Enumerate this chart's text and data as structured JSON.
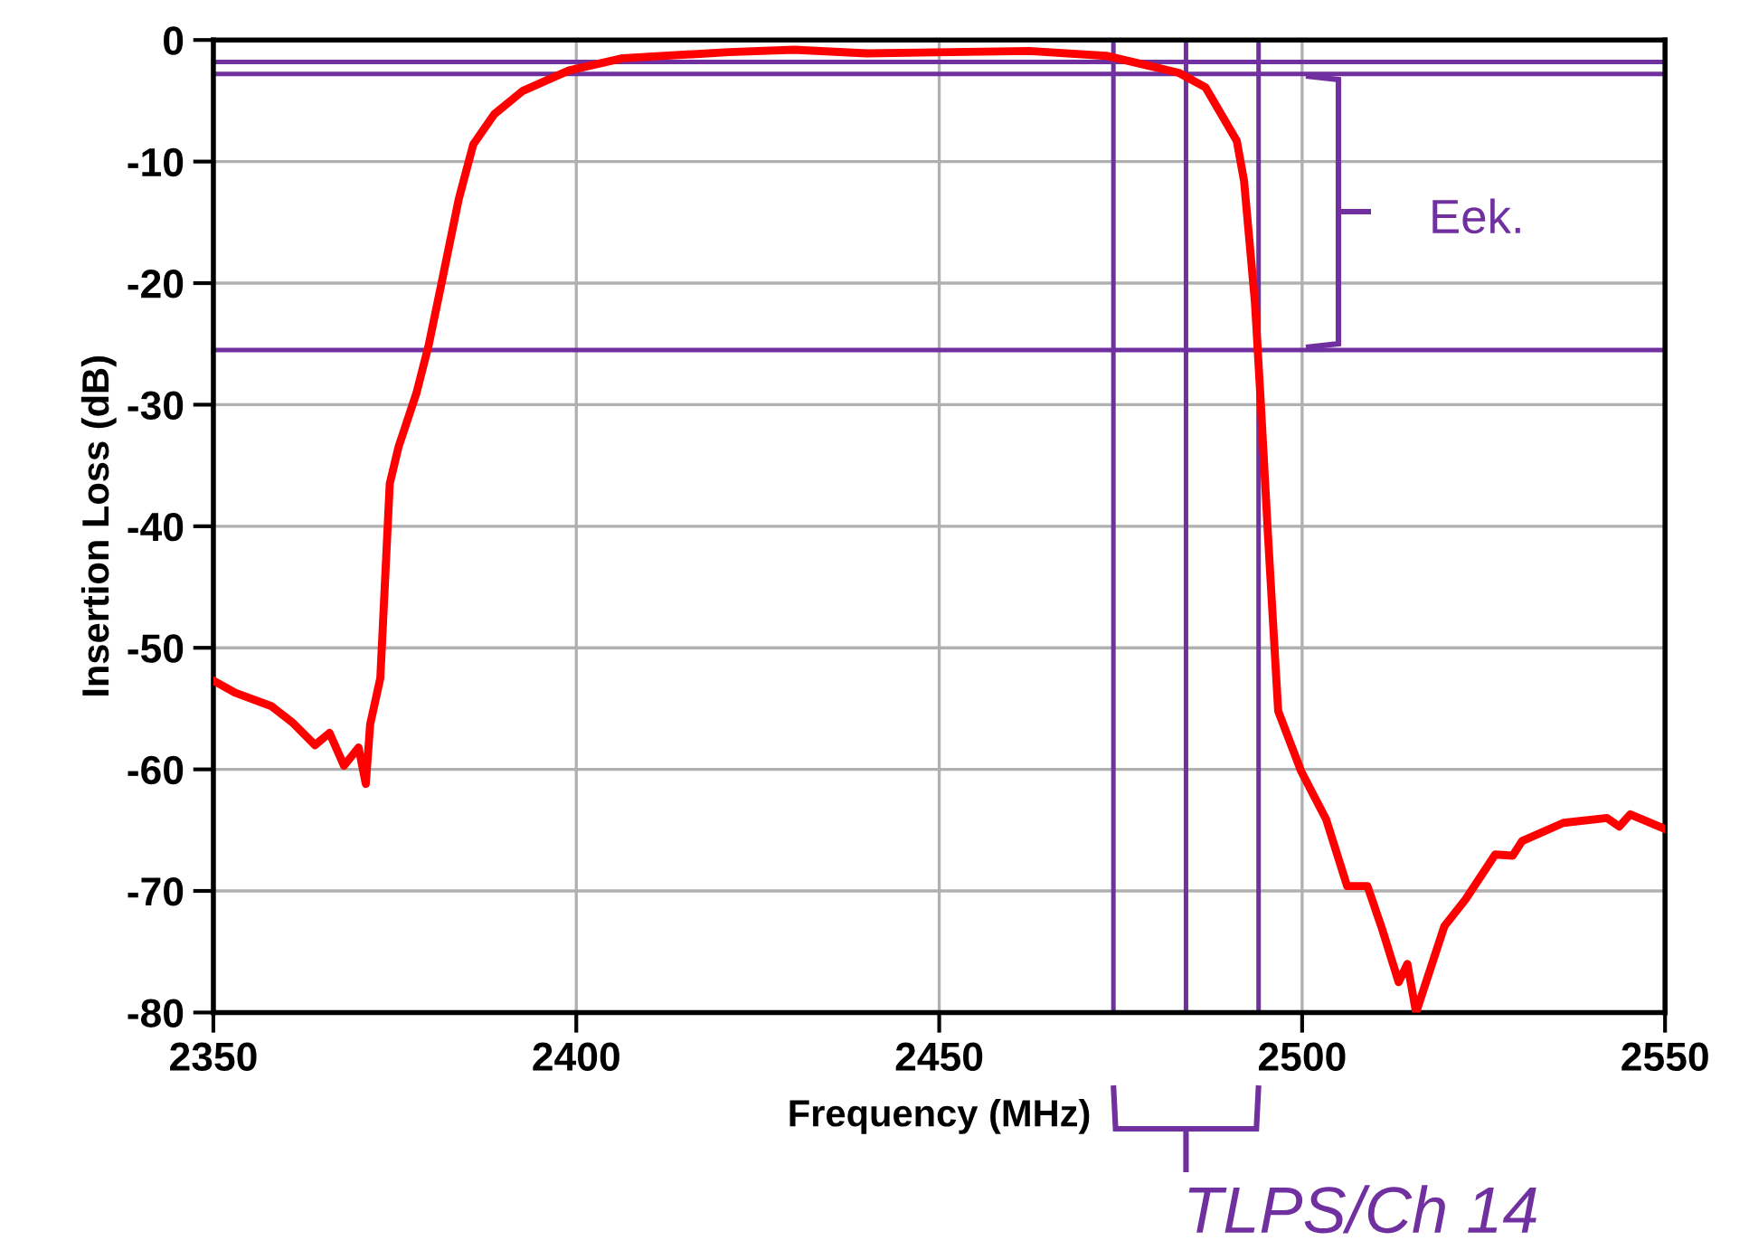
{
  "chart_data": {
    "type": "line",
    "xlabel": "Frequency (MHz)",
    "ylabel": "Insertion Loss (dB)",
    "xlim": [
      2350,
      2550
    ],
    "xticks": [
      2350,
      2400,
      2450,
      2500,
      2550
    ],
    "ylim": [
      -80,
      0
    ],
    "yticks": [
      -80,
      -70,
      -60,
      -50,
      -40,
      -30,
      -20,
      -10,
      0
    ],
    "grid": true,
    "marker": "none",
    "line_style": "solid",
    "series": [
      {
        "color": "#ff0000",
        "x": [
          2350,
          2353,
          2358,
          2361,
          2364,
          2366,
          2368,
          2370,
          2371,
          2371.6,
          2373,
          2374.3,
          2375.5,
          2378,
          2379.7,
          2381.4,
          2383.8,
          2385.8,
          2388.7,
          2392.6,
          2399,
          2406.4,
          2421,
          2430,
          2440,
          2462.4,
          2473,
          2483,
          2486.7,
          2491,
          2492,
          2493.5,
          2494.3,
          2495.3,
          2496.7,
          2499.9,
          2503.3,
          2506.2,
          2509,
          2511,
          2513.3,
          2514.5,
          2515.7,
          2519.6,
          2522.5,
          2526.6,
          2529,
          2530.3,
          2536,
          2542,
          2543.7,
          2545.2,
          2550
        ],
        "values": [
          -52.7,
          -53.7,
          -54.8,
          -56.2,
          -58.0,
          -57.0,
          -59.7,
          -58.2,
          -61.2,
          -56.3,
          -52.5,
          -36.5,
          -33.5,
          -29.0,
          -25.0,
          -20.1,
          -13.1,
          -8.6,
          -6.1,
          -4.2,
          -2.5,
          -1.5,
          -1.0,
          -0.8,
          -1.1,
          -0.9,
          -1.3,
          -2.7,
          -3.9,
          -8.3,
          -11.6,
          -21.6,
          -29.8,
          -40.8,
          -55.2,
          -60.2,
          -64.1,
          -69.6,
          -69.6,
          -73.1,
          -77.5,
          -76.0,
          -80,
          -72.9,
          -70.7,
          -67.0,
          -67.1,
          -65.9,
          -64.4,
          -64.0,
          -64.7,
          -63.7,
          -64.9
        ]
      }
    ],
    "ref_lines": [
      {
        "axis": "y",
        "value": -1.8,
        "color": "#7030a0"
      },
      {
        "axis": "y",
        "value": -2.8,
        "color": "#7030a0"
      },
      {
        "axis": "y",
        "value": -25.5,
        "color": "#7030a0"
      },
      {
        "axis": "x",
        "value": 2474,
        "color": "#7030a0"
      },
      {
        "axis": "x",
        "value": 2484,
        "color": "#7030a0"
      },
      {
        "axis": "x",
        "value": 2494,
        "color": "#7030a0"
      }
    ],
    "annotations": [
      "Eek.",
      "TLPS/Ch 14"
    ]
  }
}
